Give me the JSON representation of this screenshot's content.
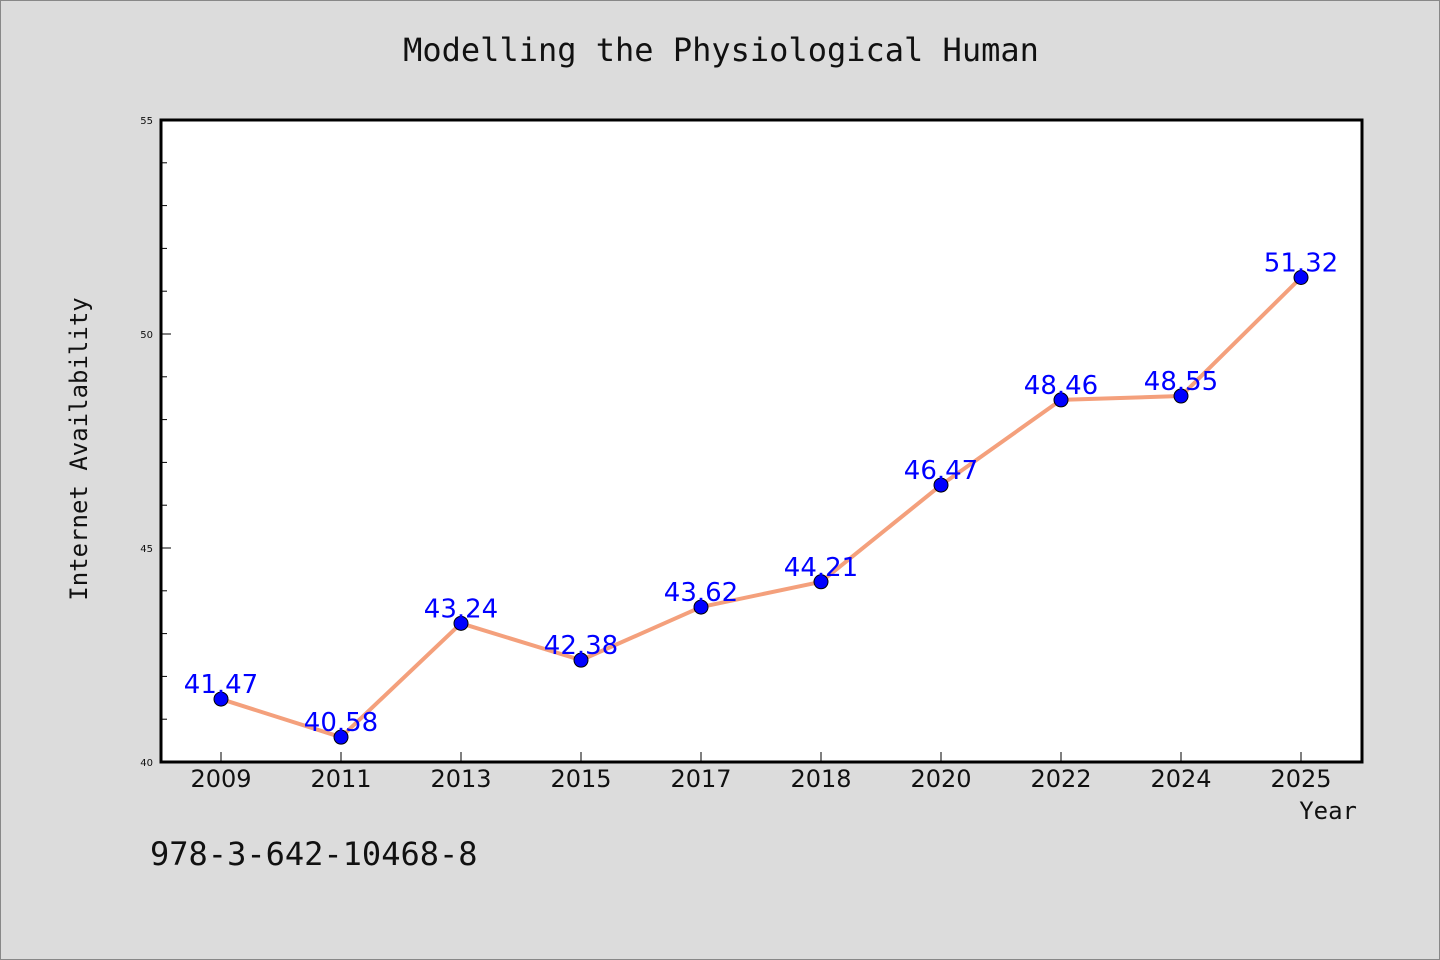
{
  "chart_data": {
    "type": "line",
    "title": "Modelling the Physiological Human",
    "xlabel": "Year",
    "ylabel": "Internet Availability",
    "categories": [
      "2009",
      "2011",
      "2013",
      "2015",
      "2017",
      "2018",
      "2020",
      "2022",
      "2024",
      "2025"
    ],
    "series": [
      {
        "values": [
          41.47,
          40.58,
          43.24,
          42.38,
          43.62,
          44.21,
          46.47,
          48.46,
          48.55,
          51.32
        ]
      }
    ],
    "data_labels": [
      "41.47",
      "40.58",
      "43.24",
      "42.38",
      "43.62",
      "44.21",
      "46.47",
      "48.46",
      "48.55",
      "51.32"
    ],
    "ylim": [
      40,
      55
    ],
    "yticks": [
      "40",
      "45",
      "50",
      "55"
    ],
    "grid": false,
    "legend": "none",
    "colors": {
      "line": "#f4a07c",
      "marker": "#0000ff",
      "label": "#0000ff",
      "background": "#dcdcdc",
      "plot_background": "#ffffff"
    }
  },
  "footer": {
    "code": "978-3-642-10468-8"
  }
}
